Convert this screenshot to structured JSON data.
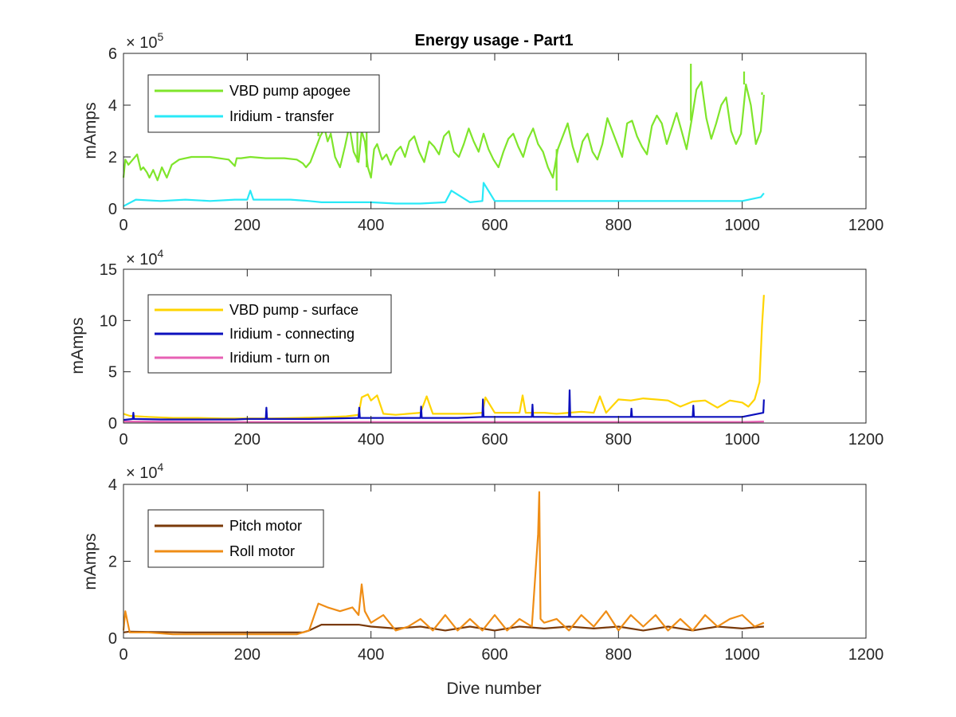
{
  "figure": {
    "background": "#ffffff",
    "axis_color": "#262626"
  },
  "chart_data": [
    {
      "type": "line",
      "title": "Energy usage - Part1",
      "xlabel": "",
      "ylabel": "mAmps",
      "xlim": [
        0,
        1200
      ],
      "ylim": [
        0,
        6
      ],
      "y_exponent_label": "× 10",
      "y_exponent": "5",
      "xticks": [
        "0",
        "200",
        "400",
        "600",
        "800",
        "1000",
        "1200"
      ],
      "yticks": [
        "0",
        "2",
        "4",
        "6"
      ],
      "legend_position": "top-left",
      "series": [
        {
          "name": "VBD pump apogee",
          "color": "#7fe52b",
          "x": [
            0,
            3,
            8,
            15,
            22,
            28,
            32,
            38,
            42,
            48,
            55,
            62,
            70,
            78,
            90,
            110,
            140,
            170,
            180,
            183,
            190,
            205,
            230,
            260,
            280,
            290,
            295,
            302,
            310,
            318,
            325,
            330,
            335,
            342,
            350,
            358,
            365,
            372,
            380,
            385,
            390,
            395,
            400,
            405,
            410,
            418,
            425,
            432,
            440,
            448,
            455,
            462,
            470,
            478,
            486,
            494,
            502,
            510,
            518,
            526,
            534,
            542,
            550,
            558,
            566,
            574,
            582,
            590,
            598,
            606,
            614,
            622,
            630,
            638,
            646,
            654,
            662,
            670,
            678,
            686,
            694,
            702,
            710,
            718,
            726,
            734,
            742,
            750,
            758,
            766,
            774,
            782,
            790,
            798,
            806,
            814,
            822,
            830,
            838,
            846,
            854,
            862,
            870,
            878,
            886,
            894,
            902,
            910,
            918,
            926,
            934,
            942,
            950,
            958,
            966,
            974,
            982,
            990,
            998,
            1006,
            1014,
            1022,
            1030,
            1035
          ],
          "y": [
            1.2,
            1.9,
            1.7,
            1.9,
            2.1,
            1.5,
            1.6,
            1.4,
            1.2,
            1.5,
            1.1,
            1.6,
            1.2,
            1.7,
            1.9,
            2.0,
            2.0,
            1.9,
            1.65,
            1.95,
            1.95,
            2.0,
            1.95,
            1.95,
            1.9,
            1.75,
            1.6,
            1.8,
            2.3,
            2.8,
            3.1,
            2.6,
            2.9,
            2.0,
            1.6,
            2.4,
            3.2,
            2.2,
            1.8,
            3.0,
            2.6,
            1.6,
            1.2,
            2.3,
            2.5,
            1.9,
            2.1,
            1.7,
            2.2,
            2.4,
            2.0,
            2.6,
            2.8,
            2.2,
            1.8,
            2.6,
            2.4,
            2.1,
            2.8,
            3.0,
            2.2,
            2.0,
            2.5,
            3.1,
            2.6,
            2.2,
            2.9,
            2.3,
            1.9,
            1.6,
            2.2,
            2.7,
            2.9,
            2.4,
            2.0,
            2.7,
            3.1,
            2.5,
            2.2,
            1.6,
            1.2,
            2.3,
            2.8,
            3.3,
            2.4,
            1.8,
            2.6,
            2.9,
            2.2,
            1.9,
            2.5,
            3.5,
            3.0,
            2.5,
            2.0,
            3.3,
            3.4,
            2.8,
            2.4,
            2.1,
            3.2,
            3.6,
            3.3,
            2.5,
            3.1,
            3.7,
            3.0,
            2.3,
            3.4,
            4.6,
            4.9,
            3.5,
            2.7,
            3.3,
            4.0,
            4.3,
            3.0,
            2.5,
            2.9,
            4.8,
            4.0,
            2.5,
            3.0,
            4.4
          ],
          "spikes": [
            [
              315,
              4.2
            ],
            [
              378,
              4.5
            ],
            [
              393,
              3.3
            ],
            [
              917,
              5.6
            ],
            [
              1003,
              5.3
            ],
            [
              1032,
              4.5
            ],
            [
              700,
              0.7
            ]
          ]
        },
        {
          "name": "Iridium - transfer",
          "color": "#29e9f7",
          "x": [
            0,
            20,
            60,
            100,
            140,
            180,
            200,
            205,
            210,
            240,
            270,
            300,
            320,
            360,
            400,
            440,
            480,
            520,
            530,
            560,
            580,
            582,
            600,
            640,
            680,
            720,
            760,
            800,
            840,
            880,
            920,
            960,
            1000,
            1030,
            1035
          ],
          "y": [
            0.1,
            0.35,
            0.3,
            0.35,
            0.3,
            0.35,
            0.35,
            0.7,
            0.35,
            0.35,
            0.35,
            0.3,
            0.25,
            0.25,
            0.25,
            0.2,
            0.2,
            0.25,
            0.7,
            0.25,
            0.3,
            1.0,
            0.3,
            0.3,
            0.3,
            0.3,
            0.3,
            0.3,
            0.3,
            0.3,
            0.3,
            0.3,
            0.3,
            0.45,
            0.6
          ]
        }
      ]
    },
    {
      "type": "line",
      "title": "",
      "xlabel": "",
      "ylabel": "mAmps",
      "xlim": [
        0,
        1200
      ],
      "ylim": [
        0,
        15
      ],
      "y_exponent_label": "× 10",
      "y_exponent": "4",
      "xticks": [
        "0",
        "200",
        "400",
        "600",
        "800",
        "1000",
        "1200"
      ],
      "yticks": [
        "0",
        "5",
        "10",
        "15"
      ],
      "legend_position": "top-left",
      "series": [
        {
          "name": "VBD pump - surface",
          "color": "#ffd400",
          "x": [
            0,
            10,
            40,
            80,
            120,
            160,
            200,
            240,
            280,
            320,
            360,
            380,
            385,
            395,
            400,
            410,
            420,
            440,
            460,
            480,
            490,
            500,
            520,
            560,
            580,
            585,
            600,
            640,
            645,
            650,
            680,
            700,
            720,
            740,
            760,
            770,
            780,
            800,
            820,
            840,
            860,
            880,
            900,
            920,
            940,
            960,
            980,
            1000,
            1010,
            1020,
            1028,
            1032,
            1035
          ],
          "y": [
            0.9,
            0.7,
            0.6,
            0.5,
            0.5,
            0.45,
            0.45,
            0.45,
            0.5,
            0.55,
            0.65,
            0.8,
            2.5,
            2.8,
            2.2,
            2.7,
            0.9,
            0.8,
            0.9,
            1.0,
            2.6,
            0.9,
            0.9,
            0.9,
            1.0,
            2.5,
            1.0,
            1.0,
            2.7,
            1.0,
            1.0,
            0.9,
            1.0,
            1.1,
            1.0,
            2.6,
            1.0,
            2.3,
            2.2,
            2.4,
            2.3,
            2.2,
            1.6,
            2.1,
            2.2,
            1.5,
            2.2,
            2.0,
            1.6,
            2.3,
            4.0,
            9.5,
            12.5
          ]
        },
        {
          "name": "Iridium - connecting",
          "color": "#0c10bd",
          "x": [
            0,
            15,
            16,
            17,
            60,
            100,
            140,
            180,
            200,
            230,
            231,
            232,
            300,
            380,
            381,
            382,
            420,
            480,
            481,
            482,
            540,
            580,
            581,
            582,
            640,
            660,
            661,
            662,
            700,
            720,
            721,
            722,
            760,
            820,
            821,
            822,
            880,
            920,
            921,
            922,
            1000,
            1034,
            1035
          ],
          "y": [
            0.3,
            0.4,
            1.0,
            0.4,
            0.35,
            0.35,
            0.35,
            0.35,
            0.4,
            0.4,
            1.5,
            0.4,
            0.4,
            0.5,
            1.5,
            0.5,
            0.5,
            0.5,
            1.6,
            0.5,
            0.5,
            0.6,
            2.3,
            0.6,
            0.6,
            0.6,
            1.8,
            0.6,
            0.6,
            0.6,
            3.2,
            0.6,
            0.6,
            0.6,
            1.4,
            0.6,
            0.6,
            0.6,
            1.7,
            0.6,
            0.6,
            1.0,
            2.3
          ]
        },
        {
          "name": "Iridium - turn on",
          "color": "#e761b4",
          "x": [
            0,
            200,
            400,
            600,
            800,
            1000,
            1035
          ],
          "y": [
            0.15,
            0.1,
            0.1,
            0.1,
            0.1,
            0.1,
            0.15
          ]
        }
      ]
    },
    {
      "type": "line",
      "title": "",
      "xlabel": "Dive number",
      "ylabel": "mAmps",
      "xlim": [
        0,
        1200
      ],
      "ylim": [
        0,
        4
      ],
      "y_exponent_label": "× 10",
      "y_exponent": "4",
      "xticks": [
        "0",
        "200",
        "400",
        "600",
        "800",
        "1000",
        "1200"
      ],
      "yticks": [
        "0",
        "2",
        "4"
      ],
      "legend_position": "top-left",
      "series": [
        {
          "name": "Pitch motor",
          "color": "#7a3a0a",
          "x": [
            0,
            10,
            50,
            100,
            150,
            200,
            250,
            290,
            300,
            320,
            360,
            380,
            400,
            440,
            480,
            520,
            560,
            600,
            640,
            680,
            720,
            760,
            800,
            840,
            880,
            920,
            960,
            1000,
            1035
          ],
          "y": [
            0.15,
            0.17,
            0.16,
            0.15,
            0.15,
            0.15,
            0.15,
            0.15,
            0.2,
            0.35,
            0.35,
            0.35,
            0.3,
            0.25,
            0.3,
            0.2,
            0.3,
            0.2,
            0.3,
            0.25,
            0.3,
            0.25,
            0.3,
            0.2,
            0.3,
            0.2,
            0.3,
            0.25,
            0.3
          ]
        },
        {
          "name": "Roll motor",
          "color": "#ef8d16",
          "x": [
            0,
            3,
            10,
            40,
            80,
            120,
            160,
            200,
            240,
            280,
            300,
            315,
            330,
            350,
            370,
            380,
            385,
            390,
            400,
            420,
            440,
            460,
            480,
            500,
            520,
            540,
            560,
            580,
            600,
            620,
            640,
            660,
            670,
            672,
            674,
            680,
            700,
            720,
            740,
            760,
            780,
            800,
            820,
            840,
            860,
            880,
            900,
            920,
            940,
            960,
            980,
            1000,
            1020,
            1035
          ],
          "y": [
            0.2,
            0.7,
            0.15,
            0.15,
            0.1,
            0.1,
            0.1,
            0.1,
            0.1,
            0.1,
            0.2,
            0.9,
            0.8,
            0.7,
            0.8,
            0.6,
            1.4,
            0.7,
            0.4,
            0.6,
            0.2,
            0.3,
            0.5,
            0.2,
            0.6,
            0.2,
            0.5,
            0.2,
            0.6,
            0.2,
            0.5,
            0.3,
            2.7,
            3.8,
            0.5,
            0.4,
            0.5,
            0.2,
            0.6,
            0.3,
            0.7,
            0.2,
            0.6,
            0.3,
            0.6,
            0.2,
            0.5,
            0.2,
            0.6,
            0.3,
            0.5,
            0.6,
            0.3,
            0.4
          ]
        }
      ]
    }
  ]
}
